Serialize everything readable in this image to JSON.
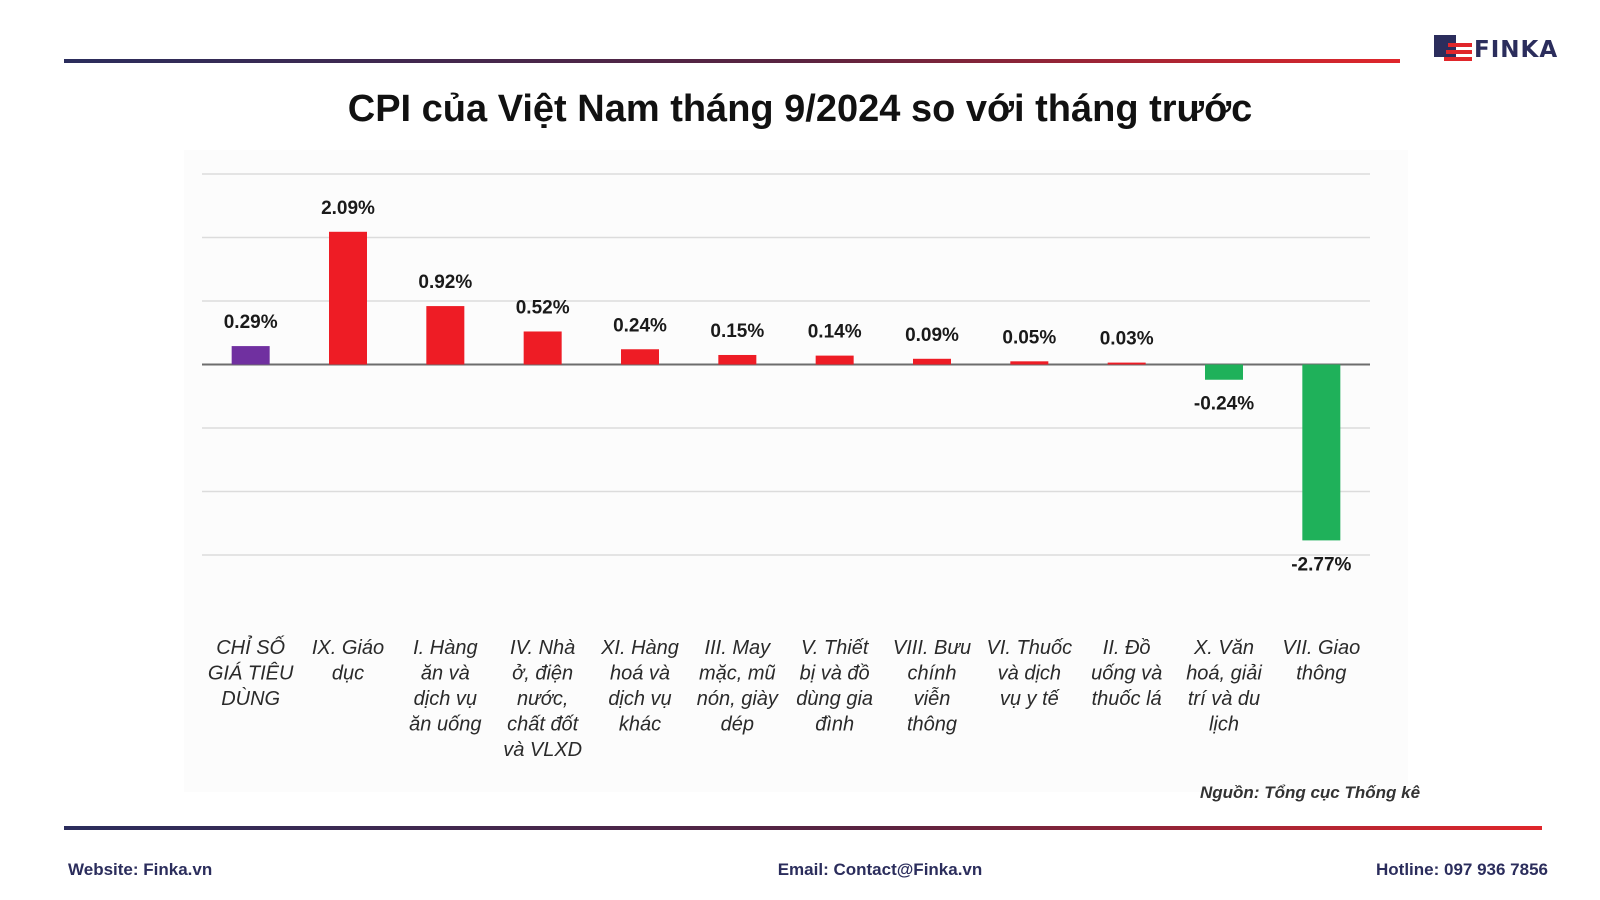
{
  "brand": {
    "logo_text": "FINKA"
  },
  "chart_data": {
    "type": "bar",
    "title": "CPI của Việt Nam tháng 9/2024 so với tháng trước",
    "categories": [
      "CHỈ SỐ GIÁ TIÊU DÙNG",
      "IX. Giáo dục",
      "I. Hàng ăn và dịch vụ ăn uống",
      "IV. Nhà ở, điện nước, chất đốt và VLXD",
      "XI. Hàng hoá và dịch vụ khác",
      "III. May mặc, mũ nón, giày dép",
      "V. Thiết bị và đồ dùng gia đình",
      "VIII. Bưu chính viễn thông",
      "VI. Thuốc và dịch vụ y tế",
      "II. Đồ uống và thuốc lá",
      "X. Văn hoá, giải trí và du lịch",
      "VII. Giao thông"
    ],
    "category_lines": [
      [
        "CHỈ SỐ",
        "GIÁ TIÊU",
        "DÙNG"
      ],
      [
        "IX. Giáo",
        "dục"
      ],
      [
        "I. Hàng",
        "ăn và",
        "dịch vụ",
        "ăn uống"
      ],
      [
        "IV. Nhà",
        "ở, điện",
        "nước,",
        "chất đốt",
        "và VLXD"
      ],
      [
        "XI. Hàng",
        "hoá và",
        "dịch vụ",
        "khác"
      ],
      [
        "III. May",
        "mặc, mũ",
        "nón, giày",
        "dép"
      ],
      [
        "V. Thiết",
        "bị và đồ",
        "dùng gia",
        "đình"
      ],
      [
        "VIII. Bưu",
        "chính",
        "viễn",
        "thông"
      ],
      [
        "VI. Thuốc",
        "và dịch",
        "vụ y tế"
      ],
      [
        "II. Đồ",
        "uống và",
        "thuốc lá"
      ],
      [
        "X. Văn",
        "hoá, giải",
        "trí và du",
        "lịch"
      ],
      [
        "VII. Giao",
        "thông"
      ]
    ],
    "values": [
      0.29,
      2.09,
      0.92,
      0.52,
      0.24,
      0.15,
      0.14,
      0.09,
      0.05,
      0.03,
      -0.24,
      -2.77
    ],
    "labels": [
      "0.29%",
      "2.09%",
      "0.92%",
      "0.52%",
      "0.24%",
      "0.15%",
      "0.14%",
      "0.09%",
      "0.05%",
      "0.03%",
      "-0.24%",
      "-2.77%"
    ],
    "colors": [
      "#7030a0",
      "#ee1c25",
      "#ee1c25",
      "#ee1c25",
      "#ee1c25",
      "#ee1c25",
      "#ee1c25",
      "#ee1c25",
      "#ee1c25",
      "#ee1c25",
      "#1fb15a",
      "#1fb15a"
    ],
    "ylim": [
      -3.0,
      3.0
    ],
    "gridlines": [
      -3.0,
      -2.0,
      -1.0,
      0.0,
      1.0,
      2.0,
      3.0
    ],
    "grid": true,
    "xlabel": "",
    "ylabel": ""
  },
  "source": "Nguồn: Tổng cục Thống kê",
  "footer": {
    "website": "Website: Finka.vn",
    "email": "Email: Contact@Finka.vn",
    "hotline": "Hotline: 097 936 7856"
  }
}
